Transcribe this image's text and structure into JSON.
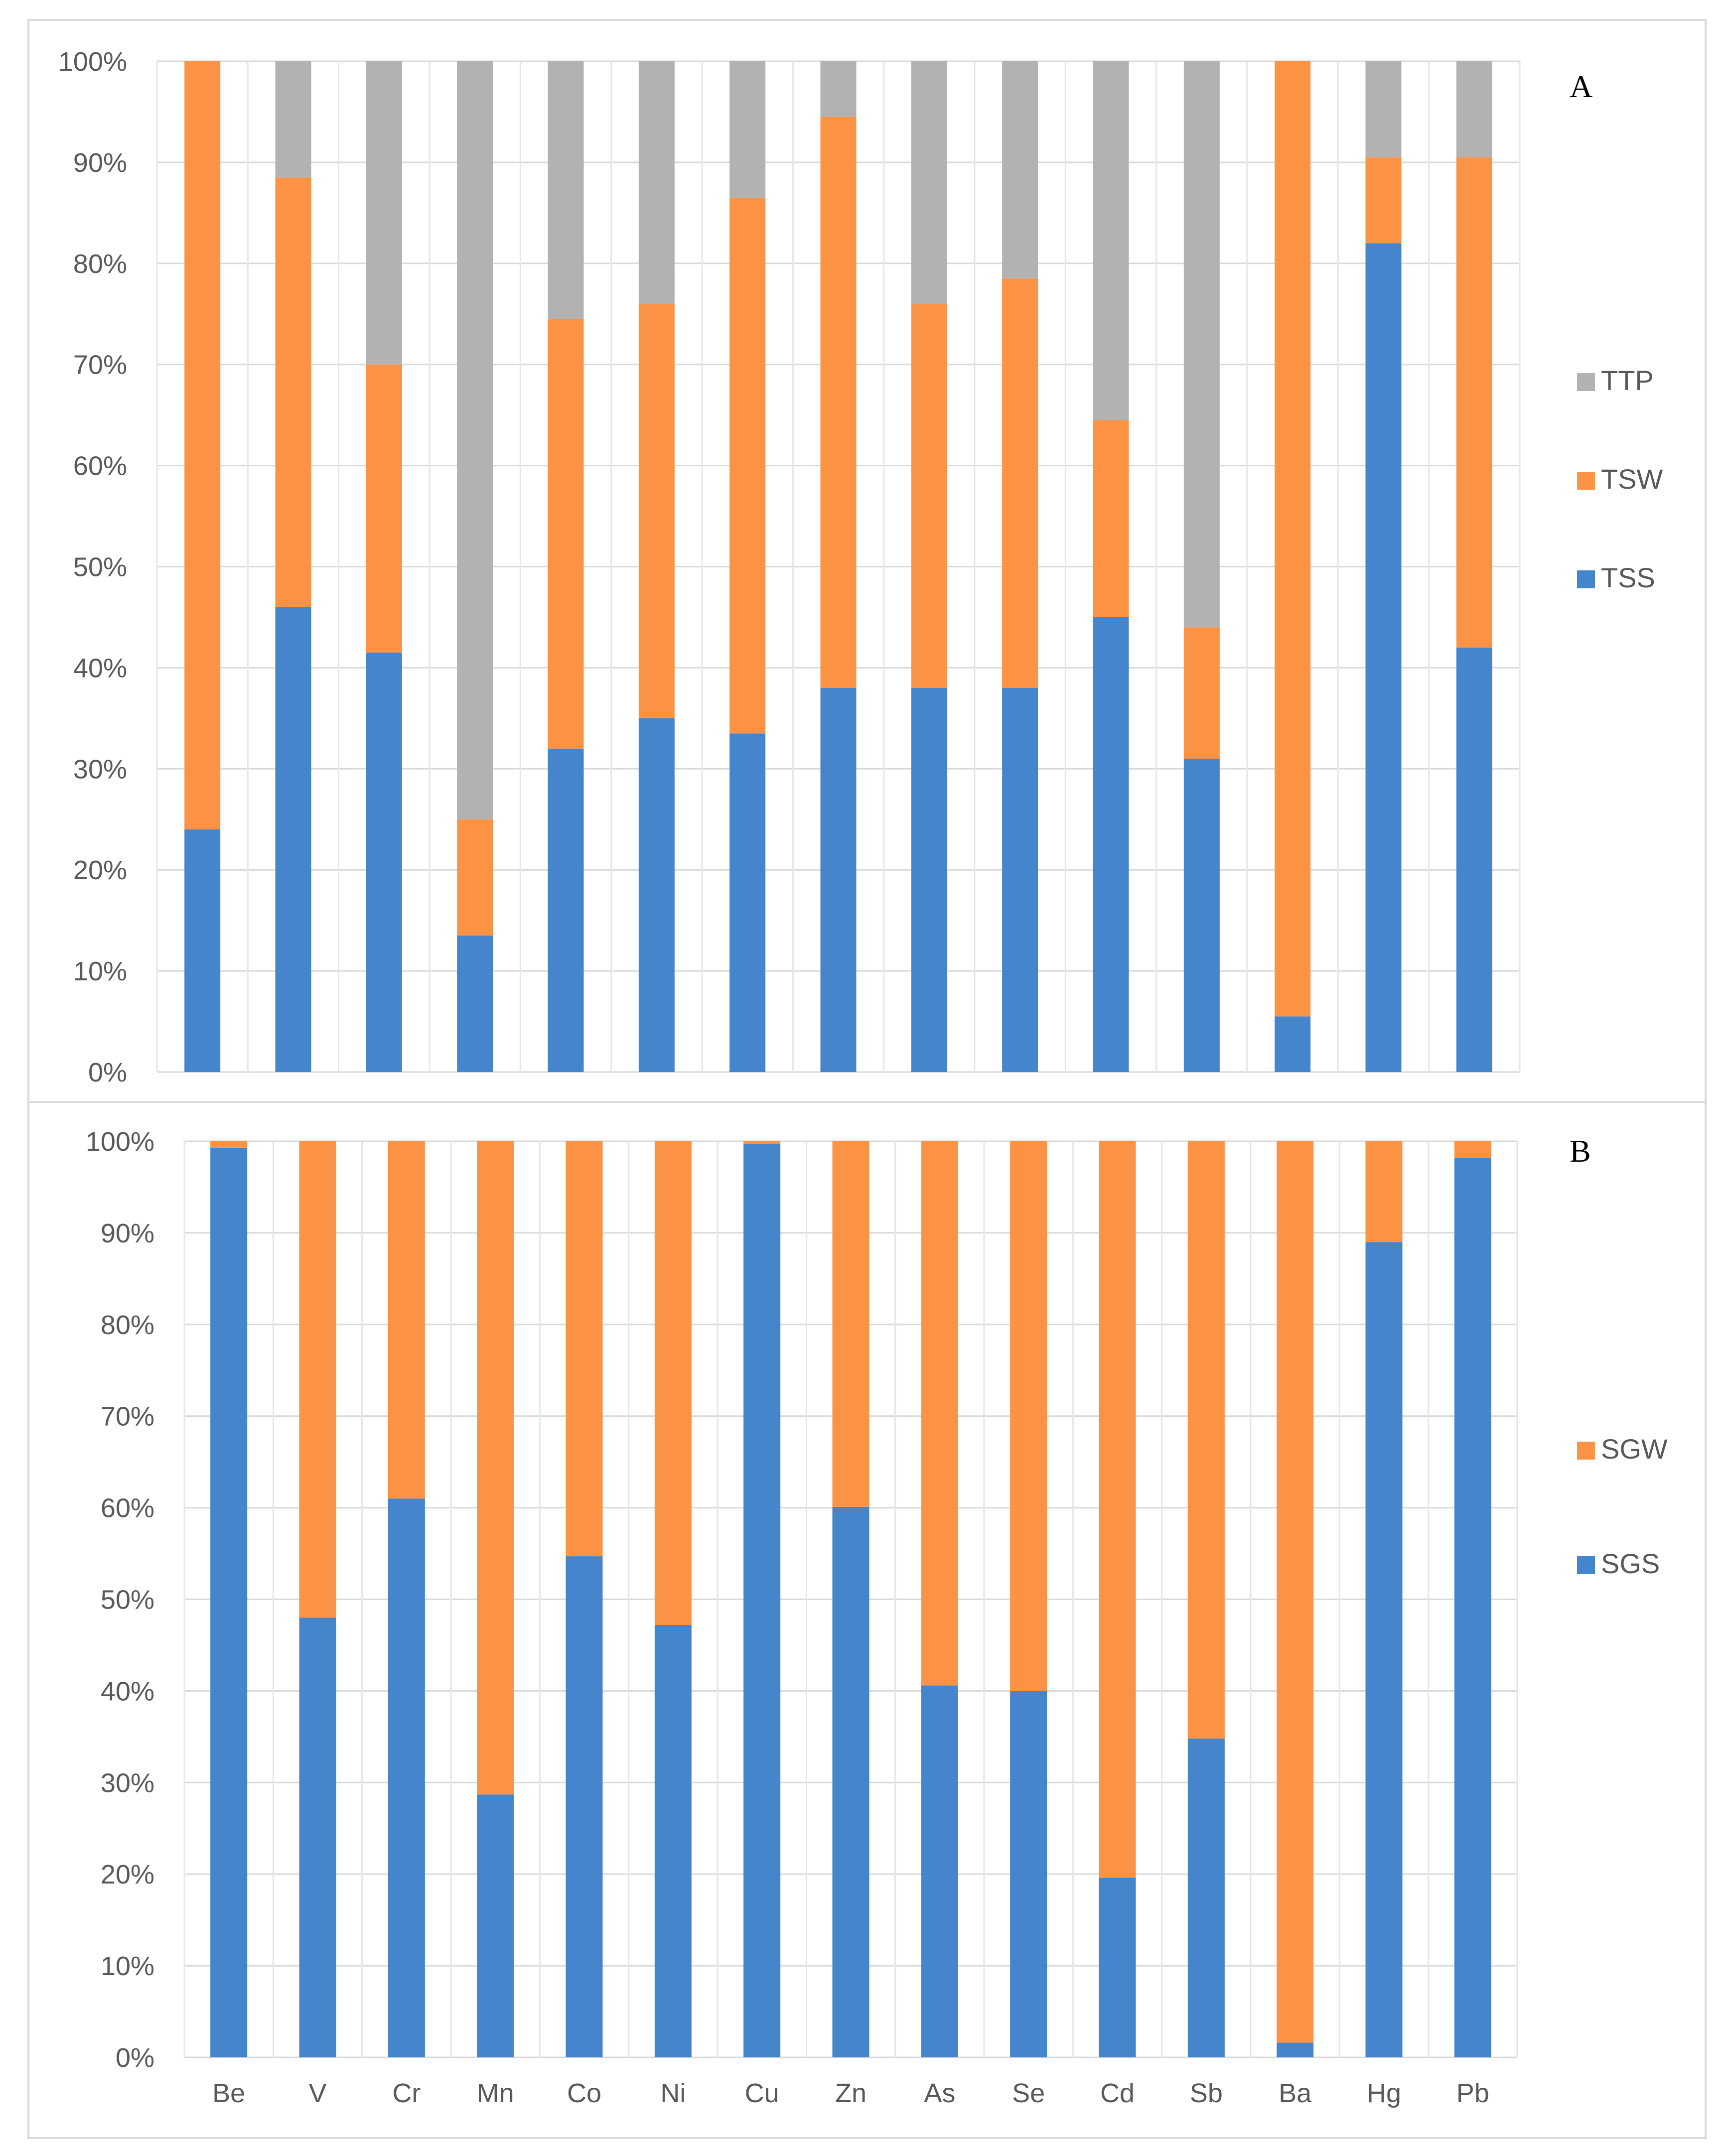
{
  "chart_data": [
    {
      "type": "bar",
      "stacked": true,
      "percent": true,
      "panel_label": "A",
      "categories": [
        "Be",
        "V",
        "Cr",
        "Mn",
        "Co",
        "Ni",
        "Cu",
        "Zn",
        "As",
        "Se",
        "Cd",
        "Sb",
        "Ba",
        "Hg",
        "Pb"
      ],
      "series": [
        {
          "name": "TSS",
          "color": "#4485cc",
          "values": [
            24,
            46,
            41.5,
            13.5,
            32,
            35,
            33.5,
            38,
            38,
            38,
            45,
            31,
            5.5,
            82,
            42
          ]
        },
        {
          "name": "TSW",
          "color": "#fb9244",
          "values": [
            76,
            42.5,
            28.5,
            11.5,
            42.5,
            41,
            53,
            56.5,
            38,
            40.5,
            19.5,
            13,
            94.5,
            8.5,
            48.5
          ]
        },
        {
          "name": "TTP",
          "color": "#b2b2b2",
          "values": [
            0,
            11.5,
            30,
            75,
            25.5,
            24,
            13.5,
            5.5,
            24,
            21.5,
            35.5,
            56,
            0,
            9.5,
            9.5
          ]
        }
      ],
      "legend_order": [
        "TTP",
        "TSW",
        "TSS"
      ],
      "y_ticks": [
        "0%",
        "10%",
        "20%",
        "30%",
        "40%",
        "50%",
        "60%",
        "70%",
        "80%",
        "90%",
        "100%"
      ],
      "ylim": [
        0,
        100
      ],
      "xlabel": "",
      "ylabel": "",
      "grid": true,
      "show_x_labels": false,
      "legend_position": "right"
    },
    {
      "type": "bar",
      "stacked": true,
      "percent": true,
      "panel_label": "B",
      "categories": [
        "Be",
        "V",
        "Cr",
        "Mn",
        "Co",
        "Ni",
        "Cu",
        "Zn",
        "As",
        "Se",
        "Cd",
        "Sb",
        "Ba",
        "Hg",
        "Pb"
      ],
      "series": [
        {
          "name": "SGS",
          "color": "#4485cc",
          "values": [
            99.3,
            48,
            61,
            28.7,
            54.7,
            47.2,
            99.7,
            60.1,
            40.6,
            40,
            19.6,
            34.8,
            1.6,
            89,
            98.2
          ]
        },
        {
          "name": "SGW",
          "color": "#fb9244",
          "values": [
            0.7,
            52,
            39,
            71.3,
            45.3,
            52.8,
            0.3,
            39.9,
            59.4,
            60,
            80.4,
            65.2,
            98.4,
            11,
            1.8
          ]
        }
      ],
      "legend_order": [
        "SGW",
        "SGS"
      ],
      "y_ticks": [
        "0%",
        "10%",
        "20%",
        "30%",
        "40%",
        "50%",
        "60%",
        "70%",
        "80%",
        "90%",
        "100%"
      ],
      "ylim": [
        0,
        100
      ],
      "xlabel": "",
      "ylabel": "",
      "grid": true,
      "show_x_labels": true,
      "legend_position": "right"
    }
  ]
}
